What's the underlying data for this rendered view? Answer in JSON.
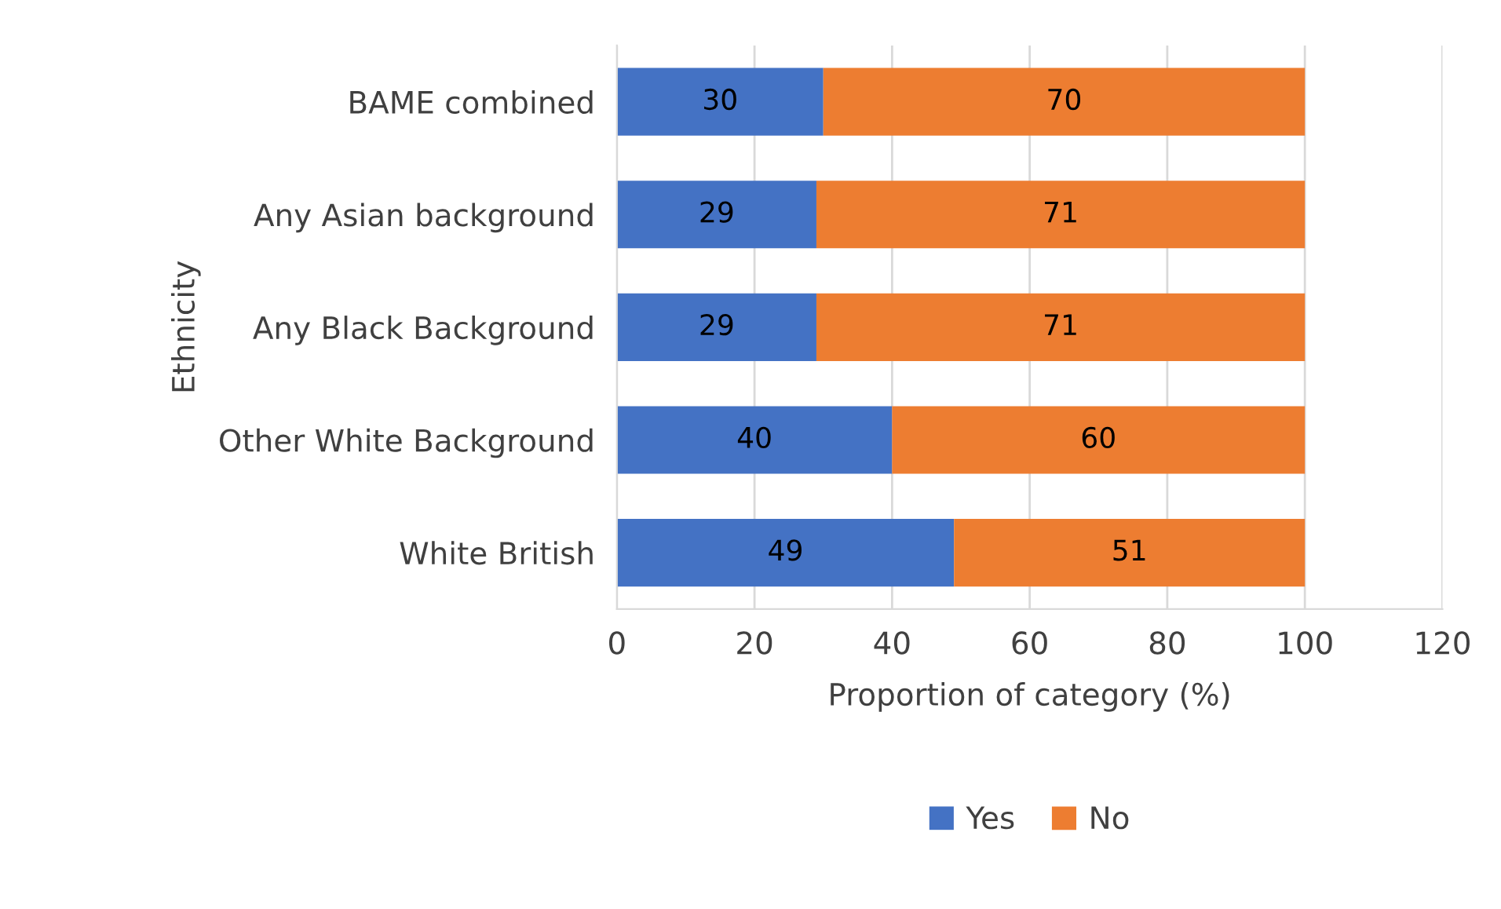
{
  "chart_data": {
    "type": "bar",
    "orientation": "horizontal",
    "stacked": true,
    "categories": [
      "BAME combined",
      "Any Asian background",
      "Any Black Background",
      "Other White Background",
      "White British"
    ],
    "series": [
      {
        "name": "Yes",
        "color": "#4472c4",
        "values": [
          30,
          29,
          29,
          40,
          49
        ]
      },
      {
        "name": "No",
        "color": "#ed7d31",
        "values": [
          70,
          71,
          71,
          60,
          51
        ]
      }
    ],
    "xlabel": "Proportion of category (%)",
    "ylabel": "Ethnicity",
    "xlim": [
      0,
      120
    ],
    "xticks": [
      0,
      20,
      40,
      60,
      80,
      100,
      120
    ],
    "grid": "x",
    "legend": "bottom",
    "data_labels": true
  }
}
